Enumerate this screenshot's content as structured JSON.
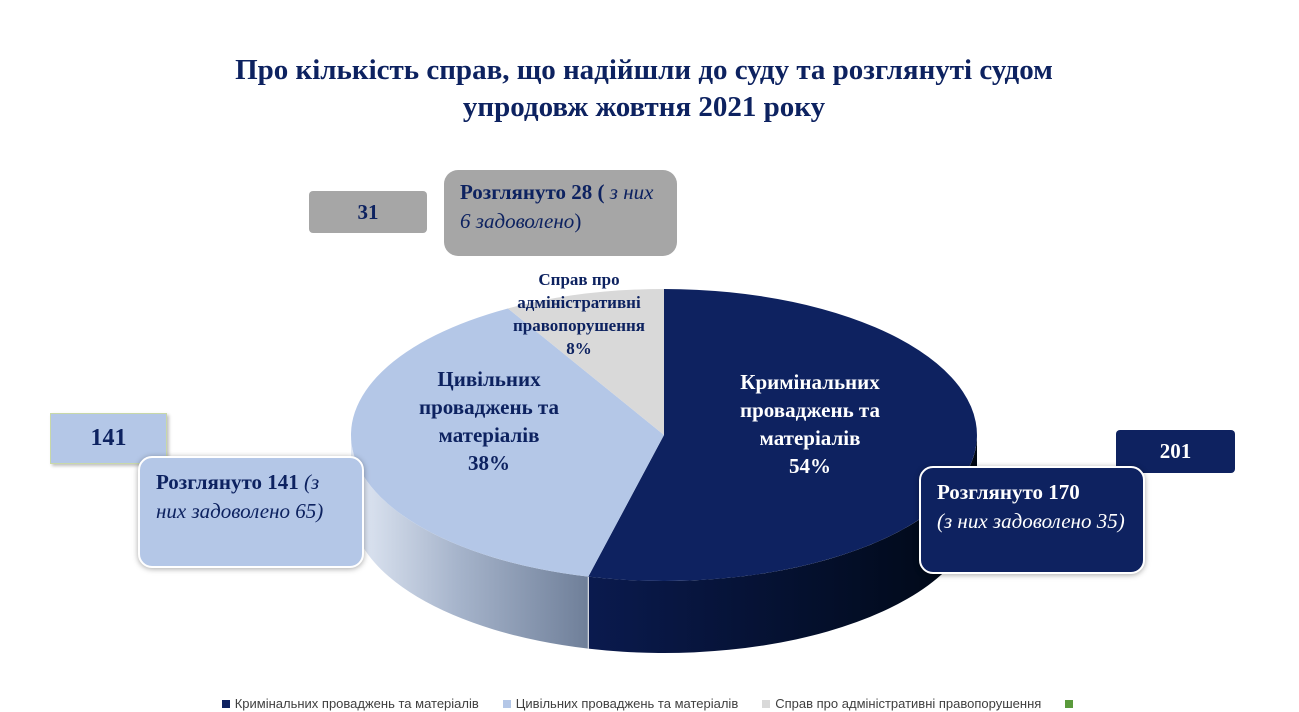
{
  "title": {
    "line1": "Про кількість справ, що надійшли до суду та розглянуті судом",
    "line2": "упродовж жовтня  2021 року"
  },
  "chart_data": {
    "type": "pie",
    "style": "3d-pie",
    "categories": [
      "Кримінальних проваджень та матеріалів",
      "Цивільних проваджень та матеріалів",
      "Справ про адміністративні правопорушення"
    ],
    "values": [
      201,
      141,
      31
    ],
    "percent_labels": [
      "54%",
      "38%",
      "8%"
    ],
    "colors": [
      "#0e2260",
      "#b4c7e7",
      "#d9d9d9"
    ],
    "slice_labels": [
      {
        "name": "Кримінальних проваджень та матеріалів",
        "lines": [
          "Кримінальних",
          "проваджень та",
          "матеріалів",
          "54%"
        ]
      },
      {
        "name": "Цивільних проваджень та матеріалів",
        "lines": [
          "Цивільних",
          "проваджень та",
          "матеріалів",
          "38%"
        ]
      },
      {
        "name": "Справ про адміністративні правопорушення",
        "lines": [
          "Справ про",
          "адміністративні",
          "правопорушення",
          "8%"
        ]
      }
    ],
    "annotations": {
      "criminal_count": "201",
      "criminal_reviewed_bold": "Розглянуто 170",
      "criminal_reviewed_rest": "(з них задоволено 35)",
      "civil_count": "141",
      "civil_reviewed_bold": "Розглянуто 141",
      "civil_reviewed_rest": "(з них задоволено 65)",
      "admin_count": "31",
      "admin_reviewed_bold": "Розглянуто 28",
      "admin_reviewed_rest": "з них 6 задоволено"
    },
    "legend": [
      {
        "label": "Кримінальних проваджень та матеріалів",
        "color": "#0e2260"
      },
      {
        "label": "Цивільних проваджень та матеріалів",
        "color": "#b4c7e7"
      },
      {
        "label": "Справ про адміністративні правопорушення",
        "color": "#d9d9d9"
      },
      {
        "label": "",
        "color": "#5a9a3c"
      }
    ],
    "legend_position": "bottom"
  }
}
